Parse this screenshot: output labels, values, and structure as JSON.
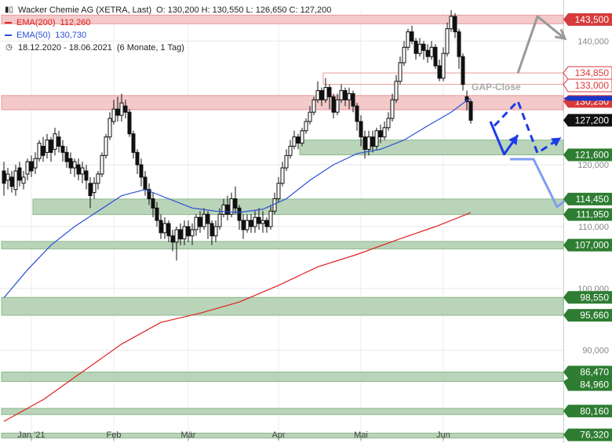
{
  "header": {
    "instrument": "Wacker Chemie AG (XETRA, Last)",
    "ohlc": "O: 130,200   H: 130,550   L: 126,650   C: 127,200",
    "ema200_label": "EMA(200)",
    "ema200_value": "112,260",
    "ema50_label": "EMA(50)",
    "ema50_value": "130,730",
    "range": "18.12.2020 - 18.06.2021",
    "range_detail": "(6 Monate, 1 Tag)"
  },
  "colors": {
    "ema200": "#e02020",
    "ema50": "#2a4fd6",
    "zone_green": "#b9d4b9",
    "zone_red": "#f3c9c9",
    "label_green": "#2e7d32",
    "label_red": "#d73a3a",
    "label_blue": "#1a37c8",
    "label_black": "#111111",
    "arrow_blue": "#1a3be8",
    "arrow_light_blue": "#7f9ef0",
    "arrow_gray": "#9a9a9a"
  },
  "chart_data": {
    "type": "candlestick",
    "title": "Wacker Chemie AG (XETRA, Last)",
    "y_axis": {
      "min": 75,
      "max": 145,
      "ticks": [
        90,
        100,
        110,
        120,
        140
      ],
      "tick_labels": [
        "90,000",
        "100,000",
        "110,000",
        "120,000",
        "140,000"
      ]
    },
    "x_axis": {
      "ticks": [
        {
          "label": "Jan '21",
          "index": 7
        },
        {
          "label": "Feb",
          "index": 28
        },
        {
          "label": "Mär",
          "index": 47
        },
        {
          "label": "Apr",
          "index": 70
        },
        {
          "label": "Mai",
          "index": 91
        },
        {
          "label": "Jun",
          "index": 112
        }
      ]
    },
    "levels": [
      {
        "value": 143.5,
        "label": "143,500",
        "style": "red"
      },
      {
        "value": 134.85,
        "label": "134,850",
        "style": "outline"
      },
      {
        "value": 133.0,
        "label": "133,000",
        "style": "outline"
      },
      {
        "value": 130.25,
        "label": "130,250",
        "style": "red"
      },
      {
        "value": 127.2,
        "label": "127,200",
        "style": "last"
      },
      {
        "value": 121.6,
        "label": "121,600",
        "style": "green"
      },
      {
        "value": 114.45,
        "label": "114,450",
        "style": "green"
      },
      {
        "value": 111.95,
        "label": "111,950",
        "style": "green"
      },
      {
        "value": 107.0,
        "label": "107,000",
        "style": "green"
      },
      {
        "value": 98.55,
        "label": "98,550",
        "style": "green"
      },
      {
        "value": 95.66,
        "label": "95,660",
        "style": "green"
      },
      {
        "value": 86.47,
        "label": "86,470",
        "style": "green"
      },
      {
        "value": 84.96,
        "label": "84,960",
        "style": "green"
      },
      {
        "value": 80.16,
        "label": "80,160",
        "style": "green"
      },
      {
        "value": 76.32,
        "label": "76,320",
        "style": "green"
      }
    ],
    "ema50_tag": {
      "value": 130.73,
      "label": "130,730"
    },
    "zones": [
      {
        "lo": 142.8,
        "hi": 144.2,
        "color": "red",
        "from_index": 0
      },
      {
        "lo": 128.9,
        "hi": 131.2,
        "color": "red",
        "from_index": 0
      },
      {
        "lo": 133.0,
        "hi": 134.85,
        "color": "outline",
        "from_index": 82
      },
      {
        "lo": 121.6,
        "hi": 124.0,
        "color": "green",
        "from_index": 76
      },
      {
        "lo": 111.95,
        "hi": 114.45,
        "color": "green",
        "from_index": 8
      },
      {
        "lo": 106.4,
        "hi": 107.6,
        "color": "green",
        "from_index": 0
      },
      {
        "lo": 95.66,
        "hi": 98.55,
        "color": "green",
        "from_index": 0
      },
      {
        "lo": 84.96,
        "hi": 86.47,
        "color": "green",
        "from_index": 0
      },
      {
        "lo": 79.6,
        "hi": 80.6,
        "color": "green",
        "from_index": 0
      },
      {
        "lo": 75.8,
        "hi": 76.6,
        "color": "green",
        "from_index": 0
      }
    ],
    "annotation": {
      "text": "GAP-Close",
      "x_index": 124,
      "value": 132.6
    },
    "candles": [
      [
        119.0,
        117.0,
        120.5,
        115.0
      ],
      [
        117.5,
        118.5,
        119.5,
        116.0
      ],
      [
        118.0,
        116.5,
        119.0,
        115.5
      ],
      [
        116.0,
        119.0,
        120.0,
        115.0
      ],
      [
        119.5,
        117.5,
        120.5,
        116.5
      ],
      [
        117.0,
        118.0,
        119.0,
        116.0
      ],
      [
        118.5,
        120.5,
        121.0,
        117.5
      ],
      [
        120.5,
        119.0,
        121.5,
        118.0
      ],
      [
        119.5,
        121.0,
        122.0,
        118.5
      ],
      [
        121.0,
        123.5,
        124.0,
        120.5
      ],
      [
        123.0,
        121.5,
        124.5,
        120.5
      ],
      [
        122.0,
        124.0,
        125.0,
        121.0
      ],
      [
        124.0,
        122.0,
        124.5,
        120.5
      ],
      [
        122.5,
        125.0,
        126.0,
        121.5
      ],
      [
        124.5,
        123.0,
        125.5,
        122.0
      ],
      [
        123.0,
        122.0,
        124.0,
        120.5
      ],
      [
        122.0,
        120.5,
        123.0,
        119.5
      ],
      [
        121.0,
        119.5,
        122.0,
        118.5
      ],
      [
        119.5,
        120.5,
        121.0,
        118.0
      ],
      [
        120.0,
        118.5,
        121.0,
        117.5
      ],
      [
        118.5,
        119.5,
        120.5,
        117.0
      ],
      [
        119.0,
        117.5,
        120.0,
        116.0
      ],
      [
        117.0,
        115.0,
        118.0,
        113.0
      ],
      [
        115.5,
        117.0,
        118.0,
        114.5
      ],
      [
        117.0,
        118.5,
        119.0,
        116.0
      ],
      [
        118.5,
        121.5,
        122.0,
        118.0
      ],
      [
        121.5,
        124.5,
        125.0,
        121.0
      ],
      [
        124.5,
        127.5,
        128.5,
        124.0
      ],
      [
        127.0,
        129.0,
        130.5,
        126.5
      ],
      [
        129.0,
        128.0,
        131.0,
        127.0
      ],
      [
        128.0,
        130.0,
        131.5,
        127.0
      ],
      [
        129.5,
        128.5,
        130.5,
        127.5
      ],
      [
        128.5,
        125.0,
        129.0,
        124.5
      ],
      [
        125.0,
        122.0,
        125.5,
        121.0
      ],
      [
        122.0,
        120.0,
        122.5,
        118.5
      ],
      [
        120.0,
        118.0,
        121.0,
        116.5
      ],
      [
        118.0,
        116.0,
        119.0,
        115.0
      ],
      [
        116.0,
        114.5,
        117.0,
        113.5
      ],
      [
        114.5,
        113.0,
        115.5,
        111.5
      ],
      [
        113.0,
        111.0,
        114.0,
        110.0
      ],
      [
        111.0,
        109.0,
        112.0,
        108.0
      ],
      [
        109.0,
        110.5,
        111.5,
        108.0
      ],
      [
        110.5,
        108.5,
        111.0,
        107.5
      ],
      [
        108.5,
        107.5,
        109.5,
        106.0
      ],
      [
        107.5,
        109.5,
        110.0,
        104.5
      ],
      [
        109.5,
        108.0,
        110.5,
        107.0
      ],
      [
        108.0,
        110.0,
        111.0,
        107.0
      ],
      [
        110.0,
        108.5,
        111.0,
        107.5
      ],
      [
        108.5,
        109.5,
        110.5,
        107.0
      ],
      [
        109.5,
        111.5,
        112.0,
        108.5
      ],
      [
        111.5,
        110.0,
        112.5,
        109.0
      ],
      [
        110.0,
        112.0,
        113.0,
        109.5
      ],
      [
        112.0,
        110.5,
        112.5,
        108.0
      ],
      [
        110.5,
        108.5,
        111.0,
        107.0
      ],
      [
        108.5,
        110.0,
        111.0,
        107.5
      ],
      [
        110.0,
        112.0,
        113.0,
        109.5
      ],
      [
        112.0,
        113.5,
        114.5,
        111.5
      ],
      [
        113.5,
        112.0,
        115.0,
        111.0
      ],
      [
        112.0,
        114.5,
        115.5,
        111.5
      ],
      [
        114.5,
        113.0,
        116.5,
        112.0
      ],
      [
        113.0,
        111.0,
        113.5,
        109.5
      ],
      [
        111.0,
        109.5,
        112.0,
        108.0
      ],
      [
        109.5,
        111.0,
        112.0,
        109.0
      ],
      [
        111.0,
        110.0,
        112.0,
        109.0
      ],
      [
        110.0,
        111.5,
        112.5,
        109.0
      ],
      [
        111.5,
        110.5,
        113.0,
        109.5
      ],
      [
        110.5,
        111.0,
        112.5,
        109.0
      ],
      [
        111.0,
        110.0,
        111.5,
        109.0
      ],
      [
        110.0,
        112.5,
        113.5,
        109.5
      ],
      [
        112.5,
        114.5,
        115.5,
        112.0
      ],
      [
        114.5,
        117.0,
        118.0,
        114.0
      ],
      [
        117.0,
        119.5,
        120.5,
        116.5
      ],
      [
        119.5,
        121.5,
        122.5,
        119.0
      ],
      [
        121.5,
        123.0,
        124.0,
        121.0
      ],
      [
        123.0,
        124.5,
        125.5,
        122.5
      ],
      [
        124.5,
        123.5,
        125.0,
        122.5
      ],
      [
        123.5,
        125.5,
        126.0,
        123.0
      ],
      [
        125.5,
        127.0,
        127.5,
        125.0
      ],
      [
        127.0,
        128.5,
        129.5,
        126.5
      ],
      [
        128.5,
        130.5,
        131.0,
        128.0
      ],
      [
        130.5,
        132.0,
        133.5,
        130.0
      ],
      [
        132.0,
        130.5,
        132.5,
        129.5
      ],
      [
        130.5,
        132.5,
        134.0,
        130.0
      ],
      [
        132.5,
        131.0,
        133.0,
        129.0
      ],
      [
        131.0,
        128.5,
        131.5,
        127.5
      ],
      [
        128.5,
        130.5,
        131.5,
        128.0
      ],
      [
        130.5,
        132.0,
        133.0,
        130.0
      ],
      [
        132.0,
        130.5,
        132.5,
        129.5
      ],
      [
        130.5,
        131.5,
        132.5,
        129.0
      ],
      [
        131.5,
        129.5,
        132.0,
        128.5
      ],
      [
        129.5,
        127.0,
        130.0,
        125.5
      ],
      [
        127.0,
        124.5,
        128.0,
        123.0
      ],
      [
        124.5,
        122.5,
        125.5,
        121.0
      ],
      [
        122.5,
        124.5,
        125.5,
        121.5
      ],
      [
        124.5,
        123.0,
        125.5,
        122.0
      ],
      [
        123.0,
        125.5,
        126.0,
        122.5
      ],
      [
        125.5,
        124.5,
        126.5,
        123.5
      ],
      [
        124.5,
        126.0,
        127.0,
        124.0
      ],
      [
        126.0,
        127.5,
        128.5,
        125.5
      ],
      [
        127.5,
        130.5,
        131.5,
        127.0
      ],
      [
        130.5,
        133.5,
        134.5,
        130.0
      ],
      [
        133.5,
        136.5,
        137.5,
        133.0
      ],
      [
        136.5,
        139.0,
        140.0,
        136.0
      ],
      [
        139.0,
        141.5,
        142.0,
        138.5
      ],
      [
        141.5,
        140.0,
        142.5,
        139.5
      ],
      [
        140.0,
        138.0,
        140.5,
        137.0
      ],
      [
        138.0,
        139.5,
        140.5,
        137.5
      ],
      [
        139.5,
        138.5,
        140.0,
        137.0
      ],
      [
        138.5,
        137.5,
        139.5,
        136.5
      ],
      [
        137.5,
        139.0,
        140.0,
        137.0
      ],
      [
        139.0,
        136.0,
        139.5,
        135.5
      ],
      [
        136.0,
        134.0,
        137.0,
        133.5
      ],
      [
        134.0,
        138.0,
        139.0,
        133.5
      ],
      [
        138.0,
        142.0,
        143.0,
        137.5
      ],
      [
        142.0,
        144.0,
        145.0,
        141.5
      ],
      [
        144.0,
        141.5,
        144.5,
        140.5
      ],
      [
        141.5,
        137.5,
        142.0,
        135.5
      ],
      [
        137.5,
        133.0,
        138.0,
        132.0
      ],
      [
        131.0,
        130.2,
        132.0,
        128.8
      ],
      [
        130.2,
        127.2,
        130.55,
        126.65
      ]
    ],
    "ema200": [
      {
        "i": 0,
        "v": 78.5
      },
      {
        "i": 10,
        "v": 82.0
      },
      {
        "i": 20,
        "v": 86.5
      },
      {
        "i": 30,
        "v": 91.0
      },
      {
        "i": 40,
        "v": 94.5
      },
      {
        "i": 50,
        "v": 96.0
      },
      {
        "i": 60,
        "v": 97.8
      },
      {
        "i": 70,
        "v": 100.5
      },
      {
        "i": 80,
        "v": 103.5
      },
      {
        "i": 90,
        "v": 105.5
      },
      {
        "i": 100,
        "v": 107.8
      },
      {
        "i": 110,
        "v": 110.0
      },
      {
        "i": 119,
        "v": 112.26
      }
    ],
    "ema50": [
      {
        "i": 0,
        "v": 98.5
      },
      {
        "i": 6,
        "v": 103.0
      },
      {
        "i": 12,
        "v": 107.0
      },
      {
        "i": 18,
        "v": 110.0
      },
      {
        "i": 24,
        "v": 112.5
      },
      {
        "i": 30,
        "v": 115.0
      },
      {
        "i": 36,
        "v": 116.0
      },
      {
        "i": 42,
        "v": 114.5
      },
      {
        "i": 48,
        "v": 113.0
      },
      {
        "i": 54,
        "v": 112.5
      },
      {
        "i": 60,
        "v": 112.3
      },
      {
        "i": 66,
        "v": 112.8
      },
      {
        "i": 72,
        "v": 114.5
      },
      {
        "i": 78,
        "v": 117.5
      },
      {
        "i": 84,
        "v": 120.0
      },
      {
        "i": 90,
        "v": 121.8
      },
      {
        "i": 96,
        "v": 122.5
      },
      {
        "i": 102,
        "v": 124.0
      },
      {
        "i": 108,
        "v": 126.3
      },
      {
        "i": 114,
        "v": 128.5
      },
      {
        "i": 118,
        "v": 130.4
      },
      {
        "i": 119,
        "v": 130.73
      }
    ],
    "scenario_arrows": [
      {
        "kind": "solid",
        "color": "blue",
        "points": [
          [
            124,
            127.0
          ],
          [
            127.5,
            121.7
          ],
          [
            131,
            124.8
          ]
        ]
      },
      {
        "kind": "dashed",
        "color": "blue",
        "points": [
          [
            125,
            126.3
          ],
          [
            131,
            130.3
          ],
          [
            136,
            121.9
          ],
          [
            142,
            124.4
          ]
        ]
      },
      {
        "kind": "solid",
        "color": "light_blue",
        "points": [
          [
            129,
            120.9
          ],
          [
            135,
            120.9
          ],
          [
            141,
            113.2
          ],
          [
            145,
            115.2
          ]
        ]
      },
      {
        "kind": "solid",
        "color": "gray",
        "points": [
          [
            131,
            134.8
          ],
          [
            136,
            144.0
          ],
          [
            143,
            140.4
          ]
        ]
      }
    ]
  }
}
